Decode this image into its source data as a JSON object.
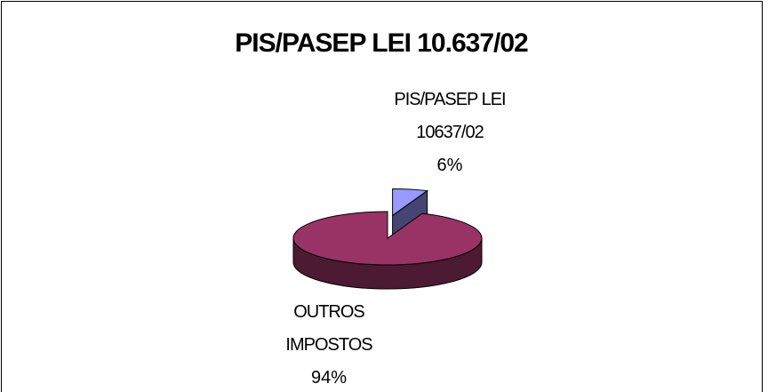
{
  "chart_data": {
    "type": "pie",
    "title": "PIS/PASEP LEI 10.637/02",
    "categories": [
      "PIS/PASEP LEI 10637/02",
      "OUTROS IMPOSTOS"
    ],
    "values": [
      6,
      94
    ],
    "value_labels": [
      "6%",
      "94%"
    ],
    "colors": [
      "#9999ff",
      "#993366"
    ],
    "three_d": true,
    "explode": [
      true,
      false
    ]
  }
}
